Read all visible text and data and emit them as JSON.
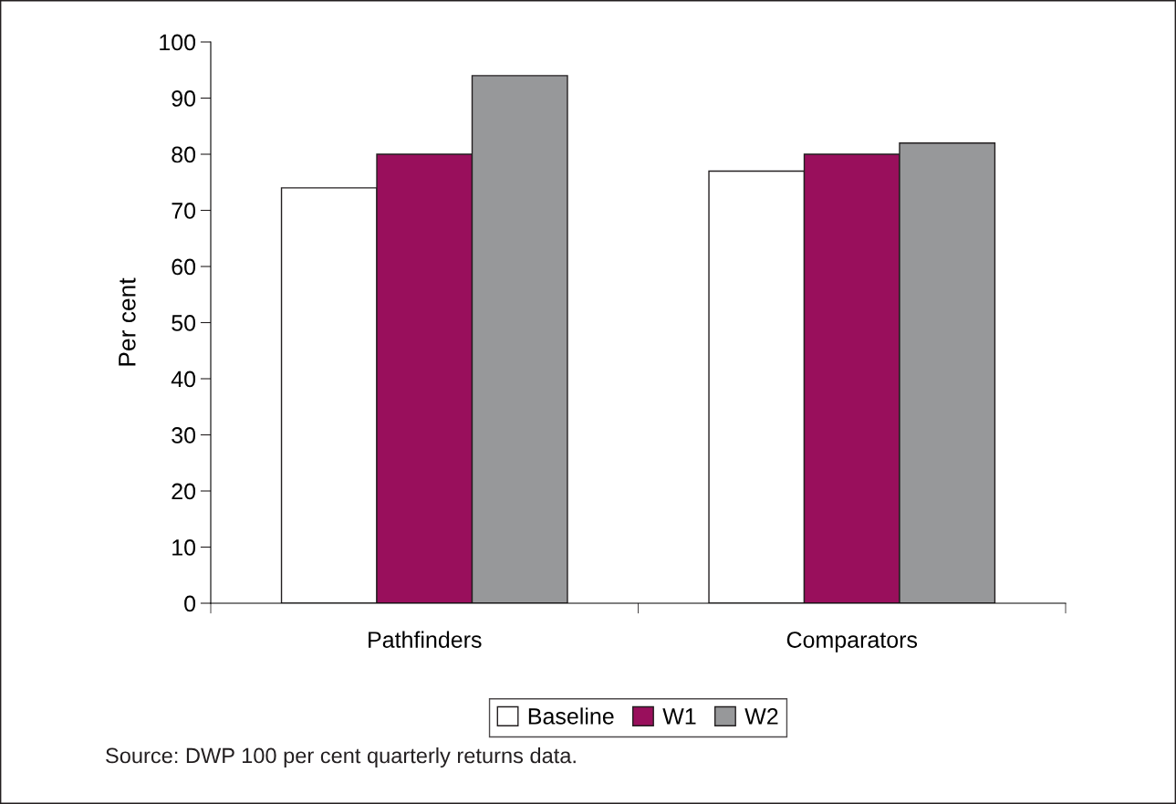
{
  "chart_data": {
    "type": "bar",
    "ylabel": "Per cent",
    "categories": [
      "Pathfinders",
      "Comparators"
    ],
    "series": [
      {
        "name": "Baseline",
        "color": "#ffffff",
        "values": [
          74,
          77
        ]
      },
      {
        "name": "W1",
        "color": "#990f5c",
        "values": [
          80,
          80
        ]
      },
      {
        "name": "W2",
        "color": "#97989a",
        "values": [
          94,
          82
        ]
      }
    ],
    "ylim": [
      0,
      100
    ],
    "yticks": [
      0,
      10,
      20,
      30,
      40,
      50,
      60,
      70,
      80,
      90,
      100
    ],
    "grid": false,
    "legend": "bottom",
    "annotations": [
      "Source: DWP 100 per cent quarterly returns data."
    ]
  }
}
